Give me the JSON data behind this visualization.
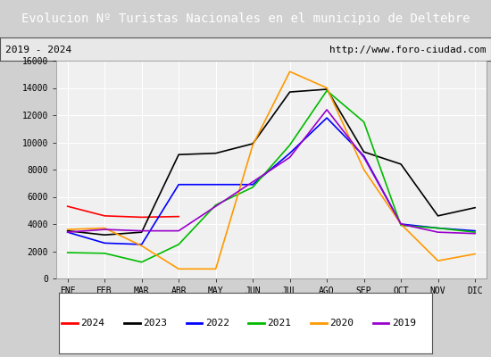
{
  "title": "Evolucion Nº Turistas Nacionales en el municipio de Deltebre",
  "subtitle_left": "2019 - 2024",
  "subtitle_right": "http://www.foro-ciudad.com",
  "months": [
    "ENE",
    "FEB",
    "MAR",
    "ABR",
    "MAY",
    "JUN",
    "JUL",
    "AGO",
    "SEP",
    "OCT",
    "NOV",
    "DIC"
  ],
  "ylim": [
    0,
    16000
  ],
  "yticks": [
    0,
    2000,
    4000,
    6000,
    8000,
    10000,
    12000,
    14000,
    16000
  ],
  "series": {
    "2024": {
      "color": "#ff0000",
      "data": [
        5300,
        4600,
        4500,
        4550,
        null,
        null,
        null,
        null,
        null,
        null,
        null,
        null
      ]
    },
    "2023": {
      "color": "#000000",
      "data": [
        3500,
        3200,
        3400,
        9100,
        9200,
        9900,
        13700,
        13900,
        9300,
        8400,
        4600,
        5200
      ]
    },
    "2022": {
      "color": "#0000ff",
      "data": [
        3400,
        2600,
        2500,
        6900,
        6900,
        6900,
        9200,
        11800,
        9000,
        4000,
        3700,
        3500
      ]
    },
    "2021": {
      "color": "#00bb00",
      "data": [
        1900,
        1850,
        1200,
        2500,
        5400,
        6700,
        9800,
        13800,
        11500,
        3900,
        3700,
        3400
      ]
    },
    "2020": {
      "color": "#ff9900",
      "data": [
        3600,
        3700,
        2400,
        700,
        700,
        9800,
        15200,
        14000,
        8000,
        4000,
        1300,
        1800
      ]
    },
    "2019": {
      "color": "#9900cc",
      "data": [
        3400,
        3600,
        3500,
        3500,
        null,
        null,
        8900,
        12400,
        8900,
        4000,
        3400,
        3300
      ]
    }
  },
  "title_bg": "#4472c4",
  "title_color": "#ffffff",
  "title_fontsize": 10,
  "subtitle_fontsize": 8,
  "plot_bg": "#f0f0f0",
  "grid_color": "#ffffff"
}
